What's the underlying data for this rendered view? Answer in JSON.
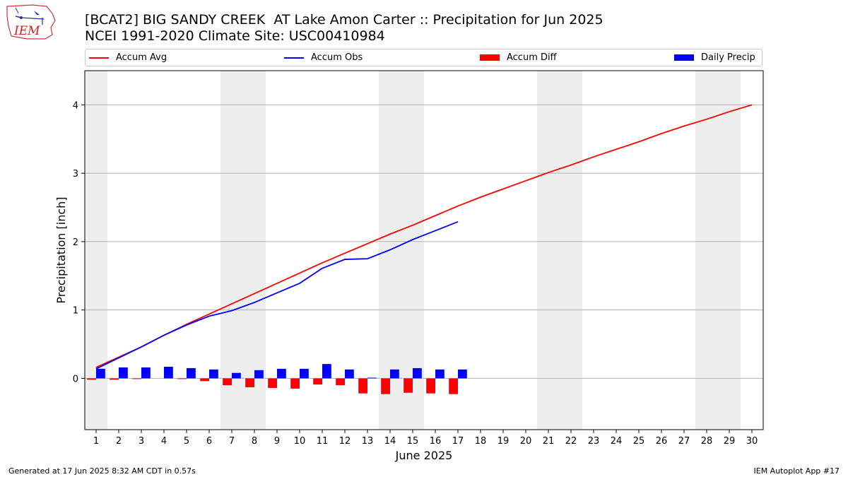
{
  "title": "[BCAT2] BIG SANDY CREEK  AT Lake Amon Carter :: Precipitation for Jun 2025",
  "subtitle": "NCEI 1991-2020 Climate Site: USC00410984",
  "logo_text": "IEM",
  "footer": {
    "left": "Generated at 17 Jun 2025 8:32 AM CDT in 0.57s",
    "right": "IEM Autoplot App #17"
  },
  "colors": {
    "accum_avg": "#ff0000",
    "accum_obs": "#0000ff",
    "accum_diff": "#ff0000",
    "daily_precip": "#0000ff",
    "weekend_shade": "#eeeeee",
    "grid": "#b0b0b0"
  },
  "chart_data": {
    "type": "bar",
    "xlabel": "June 2025",
    "ylabel": "Precipitation [inch]",
    "xlim": [
      0.5,
      30.5
    ],
    "ylim": [
      -0.75,
      4.5
    ],
    "yticks": [
      0,
      1,
      2,
      3,
      4
    ],
    "xticks": [
      1,
      2,
      3,
      4,
      5,
      6,
      7,
      8,
      9,
      10,
      11,
      12,
      13,
      14,
      15,
      16,
      17,
      18,
      19,
      20,
      21,
      22,
      23,
      24,
      25,
      26,
      27,
      28,
      29,
      30
    ],
    "grid": "horizontal",
    "legend_position": "top",
    "shaded_weekend_ranges": [
      [
        0.5,
        1.5
      ],
      [
        6.5,
        8.5
      ],
      [
        13.5,
        15.5
      ],
      [
        20.5,
        22.5
      ],
      [
        27.5,
        29.5
      ]
    ],
    "series": [
      {
        "name": "Accum Avg",
        "kind": "line",
        "x": [
          1,
          2,
          3,
          4,
          5,
          6,
          7,
          8,
          9,
          10,
          11,
          12,
          13,
          14,
          15,
          16,
          17,
          18,
          19,
          20,
          21,
          22,
          23,
          24,
          25,
          26,
          27,
          28,
          29,
          30
        ],
        "values": [
          0.16,
          0.31,
          0.46,
          0.63,
          0.79,
          0.94,
          1.09,
          1.24,
          1.39,
          1.54,
          1.69,
          1.83,
          1.97,
          2.11,
          2.24,
          2.38,
          2.52,
          2.65,
          2.77,
          2.89,
          3.01,
          3.12,
          3.24,
          3.35,
          3.46,
          3.58,
          3.69,
          3.79,
          3.9,
          4.0
        ]
      },
      {
        "name": "Accum Obs",
        "kind": "line",
        "x": [
          1,
          2,
          3,
          4,
          5,
          6,
          7,
          8,
          9,
          10,
          11,
          12,
          13,
          14,
          15,
          16,
          17
        ],
        "values": [
          0.14,
          0.3,
          0.46,
          0.63,
          0.78,
          0.91,
          0.99,
          1.11,
          1.25,
          1.39,
          1.61,
          1.74,
          1.75,
          1.88,
          2.03,
          2.16,
          2.29
        ]
      },
      {
        "name": "Accum Diff",
        "kind": "bar",
        "x": [
          1,
          2,
          3,
          4,
          5,
          6,
          7,
          8,
          9,
          10,
          11,
          12,
          13,
          14,
          15,
          16,
          17
        ],
        "values": [
          -0.02,
          -0.02,
          -0.01,
          0.0,
          -0.01,
          -0.04,
          -0.1,
          -0.13,
          -0.14,
          -0.15,
          -0.09,
          -0.1,
          -0.22,
          -0.23,
          -0.21,
          -0.22,
          -0.23
        ]
      },
      {
        "name": "Daily Precip",
        "kind": "bar",
        "x": [
          1,
          2,
          3,
          4,
          5,
          6,
          7,
          8,
          9,
          10,
          11,
          12,
          13,
          14,
          15,
          16,
          17
        ],
        "values": [
          0.14,
          0.16,
          0.16,
          0.17,
          0.15,
          0.13,
          0.08,
          0.12,
          0.14,
          0.14,
          0.21,
          0.13,
          0.01,
          0.13,
          0.15,
          0.13,
          0.13
        ]
      }
    ]
  }
}
